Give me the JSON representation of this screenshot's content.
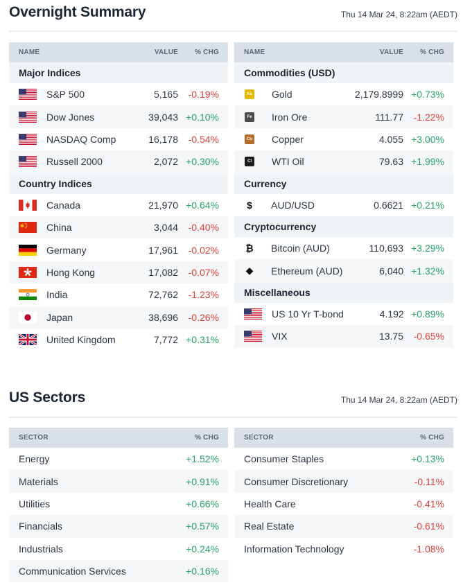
{
  "overnight": {
    "title": "Overnight Summary",
    "timestamp": "Thu 14 Mar 24, 8:22am (AEDT)",
    "left": {
      "headers": {
        "name": "NAME",
        "value": "VALUE",
        "chg": "% CHG"
      },
      "groups": [
        {
          "title": "Major Indices",
          "rows": [
            {
              "icon": "us-flag-icon",
              "name": "S&P 500",
              "value": "5,165",
              "chg": "-0.19%",
              "dir": "neg"
            },
            {
              "icon": "us-flag-icon",
              "name": "Dow Jones",
              "value": "39,043",
              "chg": "+0.10%",
              "dir": "pos"
            },
            {
              "icon": "us-flag-icon",
              "name": "NASDAQ Comp",
              "value": "16,178",
              "chg": "-0.54%",
              "dir": "neg"
            },
            {
              "icon": "us-flag-icon",
              "name": "Russell 2000",
              "value": "2,072",
              "chg": "+0.30%",
              "dir": "pos"
            }
          ]
        },
        {
          "title": "Country Indices",
          "rows": [
            {
              "icon": "canada-flag-icon",
              "name": "Canada",
              "value": "21,970",
              "chg": "+0.64%",
              "dir": "pos"
            },
            {
              "icon": "china-flag-icon",
              "name": "China",
              "value": "3,044",
              "chg": "-0.40%",
              "dir": "neg"
            },
            {
              "icon": "germany-flag-icon",
              "name": "Germany",
              "value": "17,961",
              "chg": "-0.02%",
              "dir": "neg"
            },
            {
              "icon": "hong-kong-flag-icon",
              "name": "Hong Kong",
              "value": "17,082",
              "chg": "-0.07%",
              "dir": "neg"
            },
            {
              "icon": "india-flag-icon",
              "name": "India",
              "value": "72,762",
              "chg": "-1.23%",
              "dir": "neg"
            },
            {
              "icon": "japan-flag-icon",
              "name": "Japan",
              "value": "38,696",
              "chg": "-0.26%",
              "dir": "neg"
            },
            {
              "icon": "uk-flag-icon",
              "name": "United Kingdom",
              "value": "7,772",
              "chg": "+0.31%",
              "dir": "pos"
            }
          ]
        }
      ]
    },
    "right": {
      "headers": {
        "name": "NAME",
        "value": "VALUE",
        "chg": "% CHG"
      },
      "groups": [
        {
          "title": "Commodities (USD)",
          "rows": [
            {
              "icon": "gold-chip-icon",
              "chip": "Au",
              "chip_color": "#e6b800",
              "name": "Gold",
              "value": "2,179.8999",
              "chg": "+0.73%",
              "dir": "pos"
            },
            {
              "icon": "iron-chip-icon",
              "chip": "Fe",
              "chip_color": "#4a4a4a",
              "name": "Iron Ore",
              "value": "111.77",
              "chg": "-1.22%",
              "dir": "neg"
            },
            {
              "icon": "copper-chip-icon",
              "chip": "Cu",
              "chip_color": "#b86a28",
              "name": "Copper",
              "value": "4.055",
              "chg": "+3.00%",
              "dir": "pos"
            },
            {
              "icon": "oil-chip-icon",
              "chip": "Cl",
              "chip_color": "#1c1c1c",
              "name": "WTI Oil",
              "value": "79.63",
              "chg": "+1.99%",
              "dir": "pos"
            }
          ]
        },
        {
          "title": "Currency",
          "rows": [
            {
              "icon": "dollar-icon",
              "glyph": "$",
              "name": "AUD/USD",
              "value": "0.6621",
              "chg": "+0.21%",
              "dir": "pos"
            }
          ]
        },
        {
          "title": "Cryptocurrency",
          "rows": [
            {
              "icon": "bitcoin-icon",
              "glyph": "₿",
              "name": "Bitcoin (AUD)",
              "value": "110,693",
              "chg": "+3.29%",
              "dir": "pos"
            },
            {
              "icon": "ethereum-icon",
              "glyph": "◆",
              "name": "Ethereum (AUD)",
              "value": "6,040",
              "chg": "+1.32%",
              "dir": "pos"
            }
          ]
        },
        {
          "title": "Miscellaneous",
          "rows": [
            {
              "icon": "us-flag-icon",
              "name": "US 10 Yr T-bond",
              "value": "4.192",
              "chg": "+0.89%",
              "dir": "pos"
            },
            {
              "icon": "us-flag-icon",
              "name": "VIX",
              "value": "13.75",
              "chg": "-0.65%",
              "dir": "neg"
            }
          ]
        }
      ]
    }
  },
  "sectors": {
    "title": "US Sectors",
    "timestamp": "Thu 14 Mar 24, 8:22am (AEDT)",
    "headers": {
      "name": "SECTOR",
      "chg": "% CHG"
    },
    "left": [
      {
        "name": "Energy",
        "chg": "+1.52%",
        "dir": "pos"
      },
      {
        "name": "Materials",
        "chg": "+0.91%",
        "dir": "pos"
      },
      {
        "name": "Utilities",
        "chg": "+0.66%",
        "dir": "pos"
      },
      {
        "name": "Financials",
        "chg": "+0.57%",
        "dir": "pos"
      },
      {
        "name": "Industrials",
        "chg": "+0.24%",
        "dir": "pos"
      },
      {
        "name": "Communication Services",
        "chg": "+0.16%",
        "dir": "pos"
      }
    ],
    "right": [
      {
        "name": "Consumer Staples",
        "chg": "+0.13%",
        "dir": "pos"
      },
      {
        "name": "Consumer Discretionary",
        "chg": "-0.11%",
        "dir": "neg"
      },
      {
        "name": "Health Care",
        "chg": "-0.41%",
        "dir": "neg"
      },
      {
        "name": "Real Estate",
        "chg": "-0.61%",
        "dir": "neg"
      },
      {
        "name": "Information Technology",
        "chg": "-1.08%",
        "dir": "neg"
      }
    ]
  }
}
